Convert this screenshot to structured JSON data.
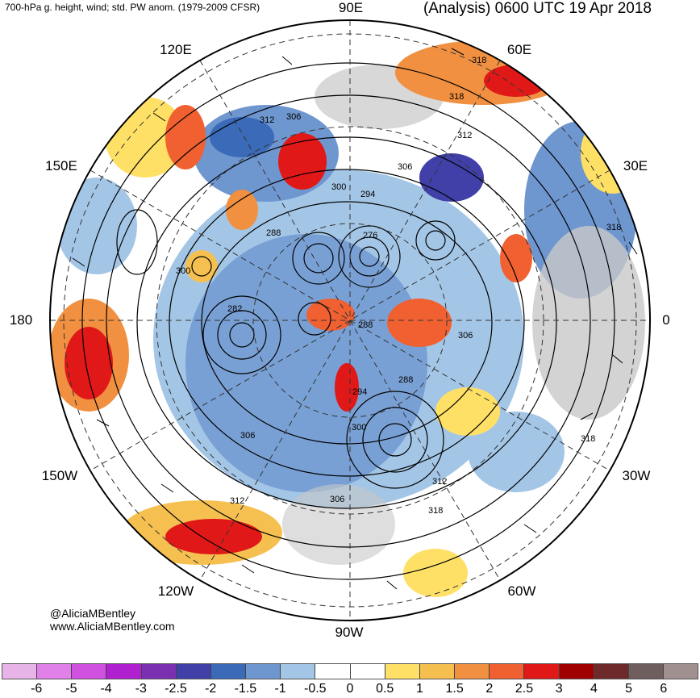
{
  "header": {
    "left_title": "700-hPa g. height, wind; std. PW anom. (1979-2009 CFSR)",
    "right_title": "(Analysis) 0600 UTC 19 Apr 2018"
  },
  "credits": {
    "line1": "@AliciaMBentley",
    "line2": "www.AliciaMBentley.com"
  },
  "longitude_labels": {
    "lon_90e": "90E",
    "lon_120e": "120E",
    "lon_60e": "60E",
    "lon_150e": "150E",
    "lon_30e": "30E",
    "lon_180": "180",
    "lon_0": "0",
    "lon_150w": "150W",
    "lon_30w": "30W",
    "lon_120w": "120W",
    "lon_60w": "60W",
    "lon_90w": "90W"
  },
  "contour_labels": [
    "318",
    "318",
    "312",
    "306",
    "312",
    "306",
    "300",
    "294",
    "288",
    "276",
    "300",
    "282",
    "288",
    "306",
    "288",
    "294",
    "300",
    "306",
    "306",
    "312",
    "312",
    "318",
    "318",
    "318"
  ],
  "colorbar": {
    "colors": [
      "#e8b4e8",
      "#e080e8",
      "#d050e0",
      "#b020d0",
      "#7a30b0",
      "#4040a8",
      "#3a6ab8",
      "#6e96cf",
      "#a4c6e6",
      "#ffffff",
      "#ffffff",
      "#ffe066",
      "#f5c050",
      "#f09040",
      "#f06030",
      "#e01818",
      "#a00000",
      "#6e2a2a",
      "#6e5e5e",
      "#a09090"
    ],
    "ticks": [
      "-6",
      "-5",
      "-4",
      "-3",
      "-2.5",
      "-2",
      "-1.5",
      "-1",
      "-0.5",
      "0",
      "0.5",
      "1",
      "1.5",
      "2",
      "2.5",
      "3",
      "4",
      "5",
      "6"
    ]
  }
}
